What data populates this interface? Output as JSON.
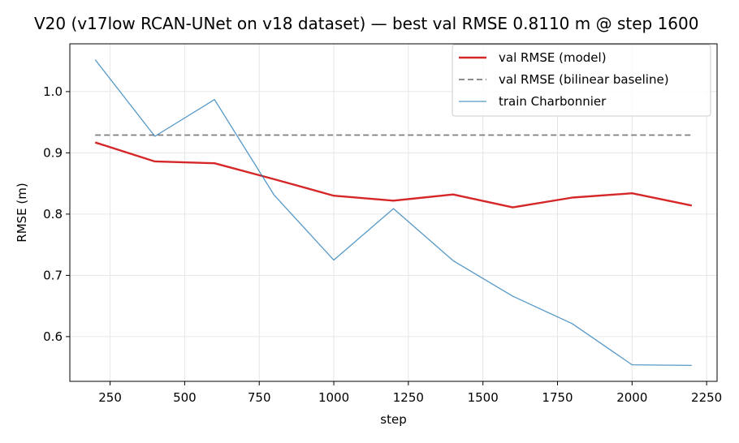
{
  "chart_data": {
    "type": "line",
    "title": "V20 (v17low RCAN-UNet on v18 dataset) — best val RMSE 0.8110 m @ step 1600",
    "xlabel": "step",
    "ylabel": "RMSE (m)",
    "xlim": [
      115,
      2285
    ],
    "ylim": [
      0.527,
      1.078
    ],
    "xticks": [
      250,
      500,
      750,
      1000,
      1250,
      1500,
      1750,
      2000,
      2250
    ],
    "yticks": [
      0.6,
      0.7,
      0.8,
      0.9,
      1.0
    ],
    "xtick_labels": [
      "250",
      "500",
      "750",
      "1000",
      "1250",
      "1500",
      "1750",
      "2000",
      "2250"
    ],
    "ytick_labels": [
      "0.6",
      "0.7",
      "0.8",
      "0.9",
      "1.0"
    ],
    "grid": true,
    "legend_position": "top-right",
    "series": [
      {
        "name": "val RMSE (model)",
        "color": "#d62728",
        "style": "solid",
        "x": [
          200,
          400,
          600,
          800,
          1000,
          1200,
          1400,
          1600,
          1800,
          2000,
          2200
        ],
        "y": [
          0.917,
          0.886,
          0.883,
          0.857,
          0.83,
          0.822,
          0.832,
          0.811,
          0.827,
          0.834,
          0.814
        ]
      },
      {
        "name": "val RMSE (bilinear baseline)",
        "color": "#7f7f7f",
        "style": "dashed",
        "x": [
          200,
          2200
        ],
        "y": [
          0.929,
          0.929
        ]
      },
      {
        "name": "train Charbonnier",
        "color": "#1f77b4",
        "style": "solid-thin",
        "x": [
          200,
          400,
          600,
          800,
          1000,
          1200,
          1400,
          1600,
          1800,
          2000,
          2200
        ],
        "y": [
          1.052,
          0.927,
          0.987,
          0.831,
          0.725,
          0.809,
          0.724,
          0.666,
          0.621,
          0.554,
          0.553
        ]
      }
    ]
  }
}
